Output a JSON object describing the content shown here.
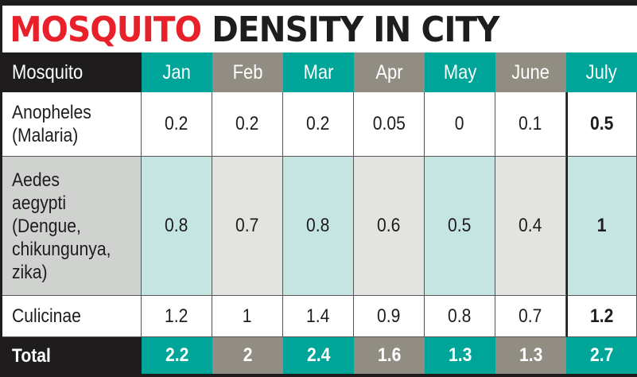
{
  "chart_data": {
    "type": "table",
    "title_part1": "MOSQUITO",
    "title_part2": "DENSITY IN CITY",
    "row_header": "Mosquito",
    "columns": [
      "Jan",
      "Feb",
      "Mar",
      "Apr",
      "May",
      "June",
      "July"
    ],
    "rows": [
      {
        "label": "Anopheles\n(Malaria)",
        "values": [
          "0.2",
          "0.2",
          "0.2",
          "0.05",
          "0",
          "0.1",
          "0.5"
        ]
      },
      {
        "label": "Aedes\naegypti\n(Dengue,\nchikungunya,\nzika)",
        "values": [
          "0.8",
          "0.7",
          "0.8",
          "0.6",
          "0.5",
          "0.4",
          "1"
        ]
      },
      {
        "label": "Culicinae",
        "values": [
          "1.2",
          "1",
          "1.4",
          "0.9",
          "0.8",
          "0.7",
          "1.2"
        ]
      }
    ],
    "total": {
      "label": "Total",
      "values": [
        "2.2",
        "2",
        "2.4",
        "1.6",
        "1.3",
        "1.3",
        "2.7"
      ]
    }
  },
  "colors": {
    "red": "#e8202a",
    "teal": "#00a59a",
    "gray": "#918d82",
    "light_teal": "#c5e5e3",
    "light_gray": "#e3e3df"
  }
}
